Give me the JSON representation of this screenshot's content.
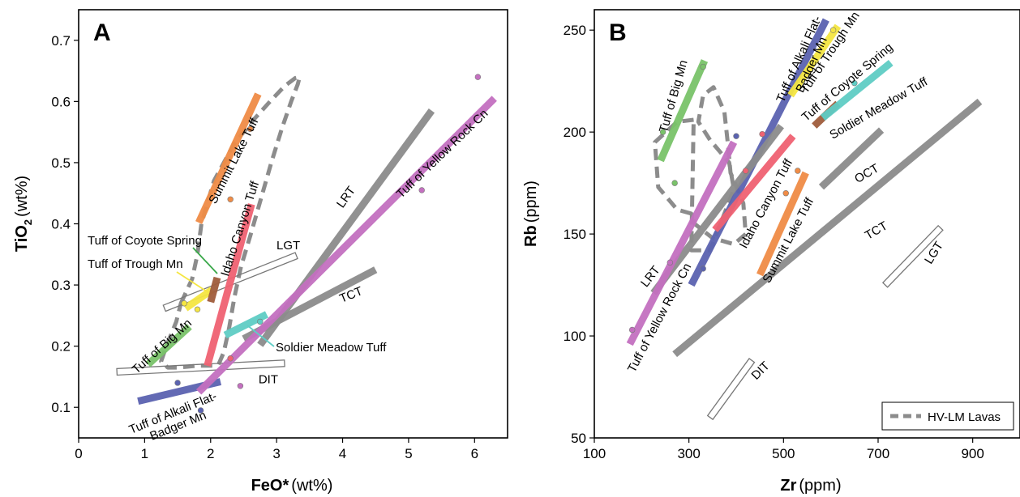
{
  "chart_data": [
    {
      "panel": "A",
      "type": "scatter",
      "xlabel": "FeO*",
      "xunit": "(wt%)",
      "ylabel": "TiO2",
      "ylabel_main": "TiO",
      "ylabel_sub": "2",
      "yunit": "(wt%)",
      "xlim": [
        0,
        6.5
      ],
      "ylim": [
        0.05,
        0.75
      ],
      "xticks": [
        "0",
        "1",
        "2",
        "3",
        "4",
        "5",
        "6"
      ],
      "yticks": [
        "0.1",
        "0.2",
        "0.3",
        "0.4",
        "0.5",
        "0.6",
        "0.7"
      ],
      "trends": [
        {
          "name": "Tuff of Alkali Flat-Badger Mn",
          "color": "#5b63b0",
          "x": [
            0.9,
            2.15
          ],
          "y": [
            0.11,
            0.142
          ]
        },
        {
          "name": "Tuff of Big Mn",
          "color": "#7ac36a",
          "x": [
            1.05,
            1.68
          ],
          "y": [
            0.17,
            0.232
          ]
        },
        {
          "name": "Tuff of Trough Mn",
          "color": "#f5e642",
          "x": [
            1.62,
            2.02
          ],
          "y": [
            0.262,
            0.292
          ]
        },
        {
          "name": "Tuff of Coyote Spring",
          "color": "#a05c3c",
          "x": [
            2.0,
            2.1
          ],
          "y": [
            0.272,
            0.312
          ]
        },
        {
          "name": "Summit Lake Tuff",
          "color": "#f08c46",
          "x": [
            1.82,
            2.72
          ],
          "y": [
            0.402,
            0.612
          ]
        },
        {
          "name": "Idaho Canyon Tuff",
          "color": "#f06272",
          "x": [
            1.95,
            2.62
          ],
          "y": [
            0.168,
            0.432
          ]
        },
        {
          "name": "Soldier Meadow Tuff",
          "color": "#5fcdc5",
          "x": [
            2.22,
            2.85
          ],
          "y": [
            0.218,
            0.252
          ]
        },
        {
          "name": "LRT",
          "color": "#8c8c8c",
          "x": [
            2.75,
            5.35
          ],
          "y": [
            0.202,
            0.585
          ]
        },
        {
          "name": "TCT",
          "color": "#8c8c8c",
          "x": [
            2.5,
            4.5
          ],
          "y": [
            0.212,
            0.325
          ]
        },
        {
          "name": "Tuff of Yellow Rock Cn",
          "color": "#c470c0",
          "x": [
            1.82,
            6.3
          ],
          "y": [
            0.125,
            0.605
          ]
        }
      ],
      "fields": [
        {
          "name": "LGT",
          "x": [
            1.3,
            3.3
          ],
          "y": [
            0.262,
            0.348
          ],
          "width": 0.03
        },
        {
          "name": "DIT",
          "x": [
            0.58,
            3.12
          ],
          "y": [
            0.158,
            0.172
          ],
          "width": 0.014
        }
      ],
      "hvlm_outline": {
        "x": [
          1.55,
          1.72,
          1.8,
          1.86,
          2.05,
          2.35,
          2.65,
          2.9,
          3.12,
          3.28,
          3.35,
          3.32,
          3.22,
          3.08,
          2.92,
          2.76,
          2.6,
          2.46,
          2.36,
          2.28,
          2.2,
          2.12,
          2.06,
          1.98,
          1.8,
          1.52,
          1.35,
          1.25,
          1.33,
          1.48
        ],
        "y": [
          0.27,
          0.31,
          0.35,
          0.4,
          0.47,
          0.53,
          0.57,
          0.6,
          0.625,
          0.638,
          0.64,
          0.628,
          0.6,
          0.556,
          0.5,
          0.44,
          0.38,
          0.33,
          0.28,
          0.23,
          0.19,
          0.17,
          0.168,
          0.168,
          0.168,
          0.165,
          0.165,
          0.175,
          0.2,
          0.24
        ]
      },
      "points": [
        {
          "x": 6.05,
          "y": 0.64,
          "color": "#c470c0"
        },
        {
          "x": 5.2,
          "y": 0.455,
          "color": "#c470c0"
        },
        {
          "x": 2.6,
          "y": 0.555,
          "color": "#f08c46"
        },
        {
          "x": 2.3,
          "y": 0.44,
          "color": "#f08c46"
        },
        {
          "x": 2.45,
          "y": 0.135,
          "color": "#c470c0"
        },
        {
          "x": 1.85,
          "y": 0.095,
          "color": "#5b63b0"
        },
        {
          "x": 1.5,
          "y": 0.14,
          "color": "#5b63b0"
        },
        {
          "x": 1.6,
          "y": 0.27,
          "color": "#f5e642"
        },
        {
          "x": 1.8,
          "y": 0.26,
          "color": "#f5e642"
        },
        {
          "x": 2.3,
          "y": 0.18,
          "color": "#f06272"
        },
        {
          "x": 2.75,
          "y": 0.24,
          "color": "#5fcdc5"
        },
        {
          "x": 1.45,
          "y": 0.21,
          "color": "#7ac36a"
        }
      ],
      "annotations": [
        {
          "text": "Tuff of Coyote Spring",
          "kind": "horizontal"
        },
        {
          "text": "Tuff of Trough Mn",
          "kind": "horizontal"
        },
        {
          "text": "Soldier Meadow Tuff",
          "kind": "horizontal"
        },
        {
          "text": "LGT",
          "kind": "horizontal"
        },
        {
          "text": "DIT",
          "kind": "horizontal"
        }
      ]
    },
    {
      "panel": "B",
      "type": "scatter",
      "xlabel": "Zr",
      "xunit": "(ppm)",
      "ylabel": "Rb",
      "yunit": "(ppm)",
      "xlim": [
        100,
        1000
      ],
      "ylim": [
        50,
        260
      ],
      "xticks": [
        "100",
        "300",
        "500",
        "700",
        "900"
      ],
      "yticks": [
        "50",
        "100",
        "150",
        "200",
        "250"
      ],
      "legend": {
        "label": "HV-LM Lavas",
        "position": "bottom-right"
      },
      "trends": [
        {
          "name": "Tuff of Big Mn",
          "color": "#7ac36a",
          "x": [
            240,
            333
          ],
          "y": [
            186,
            235
          ]
        },
        {
          "name": "Tuff of Alkali Flat-Badger Mn",
          "color": "#5b63b0",
          "x": [
            305,
            590
          ],
          "y": [
            125,
            255
          ]
        },
        {
          "name": "Tuff of Trough Mn",
          "color": "#f5e642",
          "x": [
            515,
            615
          ],
          "y": [
            218,
            252
          ]
        },
        {
          "name": "Tuff of Coyote Spring",
          "color": "#a05c3c",
          "x": [
            565,
            615
          ],
          "y": [
            203,
            214
          ]
        },
        {
          "name": "Soldier Meadow Tuff",
          "color": "#5fcdc5",
          "x": [
            583,
            727
          ],
          "y": [
            207,
            234
          ]
        },
        {
          "name": "Idaho Canyon Tuff",
          "color": "#f06272",
          "x": [
            355,
            520
          ],
          "y": [
            152,
            198
          ]
        },
        {
          "name": "Summit Lake Tuff",
          "color": "#f08c46",
          "x": [
            450,
            547
          ],
          "y": [
            130,
            180
          ]
        },
        {
          "name": "OCT",
          "color": "#8c8c8c",
          "x": [
            580,
            707
          ],
          "y": [
            173,
            201
          ]
        },
        {
          "name": "TCT",
          "color": "#8c8c8c",
          "x": [
            270,
            915
          ],
          "y": [
            91,
            215
          ]
        },
        {
          "name": "LRT",
          "color": "#8c8c8c",
          "x": [
            225,
            495
          ],
          "y": [
            121,
            203
          ]
        },
        {
          "name": "Tuff of Yellow Rock Cn",
          "color": "#c470c0",
          "x": [
            175,
            395
          ],
          "y": [
            96,
            195
          ]
        }
      ],
      "fields": [
        {
          "name": "LGT",
          "x": [
            715,
            832
          ],
          "y": [
            125,
            153
          ],
          "width": 6
        },
        {
          "name": "DIT",
          "x": [
            345,
            433
          ],
          "y": [
            60,
            88
          ],
          "width": 6
        }
      ],
      "hvlm_outline": {
        "x": [
          310,
          275,
          228,
          235,
          275,
          305,
          312,
          350,
          395,
          420,
          415,
          388,
          382,
          375,
          352,
          330,
          320,
          345,
          385,
          395,
          345,
          305
        ],
        "y": [
          206,
          205,
          195,
          173,
          162,
          160,
          155,
          148,
          145,
          150,
          165,
          180,
          195,
          210,
          222,
          218,
          205,
          196,
          185,
          172,
          142,
          142
        ]
      },
      "points": [
        {
          "x": 330,
          "y": 232,
          "color": "#7ac36a"
        },
        {
          "x": 245,
          "y": 200,
          "color": "#7ac36a"
        },
        {
          "x": 270,
          "y": 175,
          "color": "#7ac36a"
        },
        {
          "x": 605,
          "y": 250,
          "color": "#f5e642"
        },
        {
          "x": 650,
          "y": 224,
          "color": "#5fcdc5"
        },
        {
          "x": 530,
          "y": 181,
          "color": "#f08c46"
        },
        {
          "x": 505,
          "y": 170,
          "color": "#f08c46"
        },
        {
          "x": 180,
          "y": 103,
          "color": "#c470c0"
        },
        {
          "x": 260,
          "y": 136,
          "color": "#c470c0"
        },
        {
          "x": 420,
          "y": 181,
          "color": "#f06272"
        },
        {
          "x": 455,
          "y": 199,
          "color": "#f06272"
        },
        {
          "x": 330,
          "y": 133,
          "color": "#5b63b0"
        },
        {
          "x": 400,
          "y": 198,
          "color": "#5b63b0"
        }
      ]
    }
  ]
}
